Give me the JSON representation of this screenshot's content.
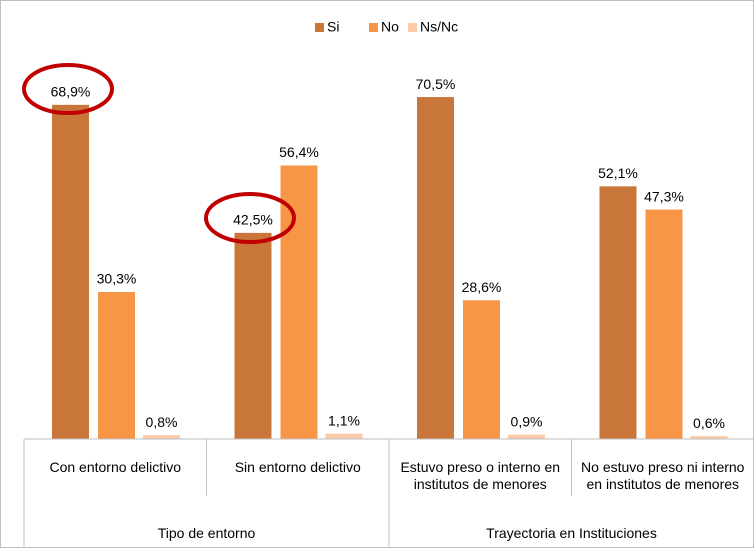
{
  "chart_data": {
    "type": "bar",
    "categories": [
      "Con entorno delictivo",
      "Sin entorno delictivo",
      "Estuvo preso o interno en institutos de menores",
      "No estuvo preso ni interno en institutos de menores"
    ],
    "groups": [
      {
        "name": "Tipo de entorno",
        "span": 2
      },
      {
        "name": "Trayectoria en Instituciones",
        "span": 2
      }
    ],
    "series": [
      {
        "name": "Si",
        "color": "#c8763a",
        "values": [
          68.9,
          42.5,
          70.5,
          52.1
        ],
        "value_labels": [
          "68,9%",
          "42,5%",
          "70,5%",
          "52,1%"
        ]
      },
      {
        "name": "No",
        "color": "#f79646",
        "values": [
          30.3,
          56.4,
          28.6,
          47.3
        ],
        "value_labels": [
          "30,3%",
          "56,4%",
          "28,6%",
          "47,3%"
        ]
      },
      {
        "name": "Ns/Nc",
        "color": "#fbcaa8",
        "values": [
          0.8,
          1.1,
          0.9,
          0.6
        ],
        "value_labels": [
          "0,8%",
          "1,1%",
          "0,9%",
          "0,6%"
        ]
      }
    ],
    "ylim": [
      0,
      80
    ],
    "legend": "top"
  }
}
